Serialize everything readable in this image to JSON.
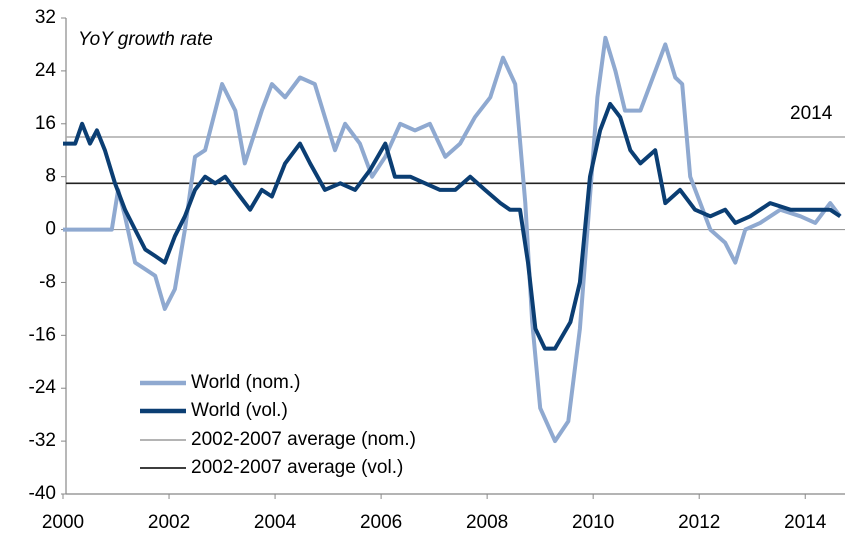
{
  "chart_data": {
    "type": "line",
    "annotations": [
      "YoY growth rate",
      "2014"
    ],
    "xlim": [
      2000,
      2014.75
    ],
    "xticks": [
      2000,
      2002,
      2004,
      2006,
      2008,
      2010,
      2012,
      2014
    ],
    "ylim": [
      -40,
      32
    ],
    "yticks": [
      -40,
      -32,
      -24,
      -16,
      -8,
      0,
      8,
      16,
      24,
      32
    ],
    "series": [
      {
        "name": "World (nom.)",
        "color": "#8fa9d0",
        "x": [
          2000.0,
          2000.92,
          2001.04,
          2001.17,
          2001.36,
          2001.55,
          2001.74,
          2001.92,
          2002.11,
          2002.3,
          2002.49,
          2002.68,
          2003.0,
          2003.25,
          2003.43,
          2003.75,
          2003.94,
          2004.19,
          2004.47,
          2004.75,
          2004.94,
          2005.13,
          2005.32,
          2005.6,
          2005.83,
          2006.08,
          2006.36,
          2006.64,
          2006.92,
          2007.21,
          2007.49,
          2007.77,
          2008.06,
          2008.3,
          2008.53,
          2008.72,
          2008.85,
          2009.0,
          2009.28,
          2009.53,
          2009.75,
          2009.94,
          2010.08,
          2010.23,
          2010.42,
          2010.6,
          2010.89,
          2011.08,
          2011.36,
          2011.55,
          2011.68,
          2011.83,
          2012.02,
          2012.21,
          2012.49,
          2012.68,
          2012.87,
          2013.15,
          2013.53,
          2013.91,
          2014.19,
          2014.47,
          2014.66
        ],
        "values": [
          0,
          0,
          6,
          2,
          -5,
          -6,
          -7,
          -12,
          -9,
          0,
          11,
          12,
          22,
          18,
          10,
          18,
          22,
          20,
          23,
          22,
          17,
          12,
          16,
          13,
          8,
          11,
          16,
          15,
          16,
          11,
          13,
          17,
          20,
          26,
          22,
          4,
          -14,
          -27,
          -32,
          -29,
          -15,
          5,
          20,
          29,
          24,
          18,
          18,
          22,
          28,
          23,
          22,
          8,
          4,
          0,
          -2,
          -5,
          0,
          1,
          3,
          2,
          1,
          4,
          2
        ]
      },
      {
        "name": "World (vol.)",
        "color": "#0b3e73",
        "x": [
          2000.0,
          2000.23,
          2000.36,
          2000.51,
          2000.64,
          2000.79,
          2000.98,
          2001.17,
          2001.36,
          2001.55,
          2001.74,
          2001.92,
          2002.11,
          2002.3,
          2002.49,
          2002.68,
          2002.87,
          2003.06,
          2003.34,
          2003.53,
          2003.75,
          2003.94,
          2004.19,
          2004.47,
          2004.66,
          2004.94,
          2005.23,
          2005.51,
          2005.79,
          2006.08,
          2006.26,
          2006.55,
          2006.83,
          2007.11,
          2007.4,
          2007.68,
          2007.96,
          2008.25,
          2008.43,
          2008.62,
          2008.77,
          2008.91,
          2009.09,
          2009.28,
          2009.57,
          2009.75,
          2009.94,
          2010.13,
          2010.32,
          2010.51,
          2010.7,
          2010.89,
          2011.17,
          2011.36,
          2011.64,
          2011.92,
          2012.21,
          2012.49,
          2012.68,
          2012.96,
          2013.34,
          2013.72,
          2014.09,
          2014.47,
          2014.66
        ],
        "values": [
          13,
          13,
          16,
          13,
          15,
          12,
          7,
          3,
          0,
          -3,
          -4,
          -5,
          -1,
          2,
          6,
          8,
          7,
          8,
          5,
          3,
          6,
          5,
          10,
          13,
          10,
          6,
          7,
          6,
          9,
          13,
          8,
          8,
          7,
          6,
          6,
          8,
          6,
          4,
          3,
          3,
          -5,
          -15,
          -18,
          -18,
          -14,
          -8,
          8,
          15,
          19,
          17,
          12,
          10,
          12,
          4,
          6,
          3,
          2,
          3,
          1,
          2,
          4,
          3,
          3,
          3,
          2
        ]
      }
    ],
    "reference_lines": [
      {
        "name": "2002-2007 average (nom.)",
        "color": "#aaaaaa",
        "value": 14
      },
      {
        "name": "2002-2007 average (vol.)",
        "color": "#222222",
        "value": 7
      }
    ]
  }
}
